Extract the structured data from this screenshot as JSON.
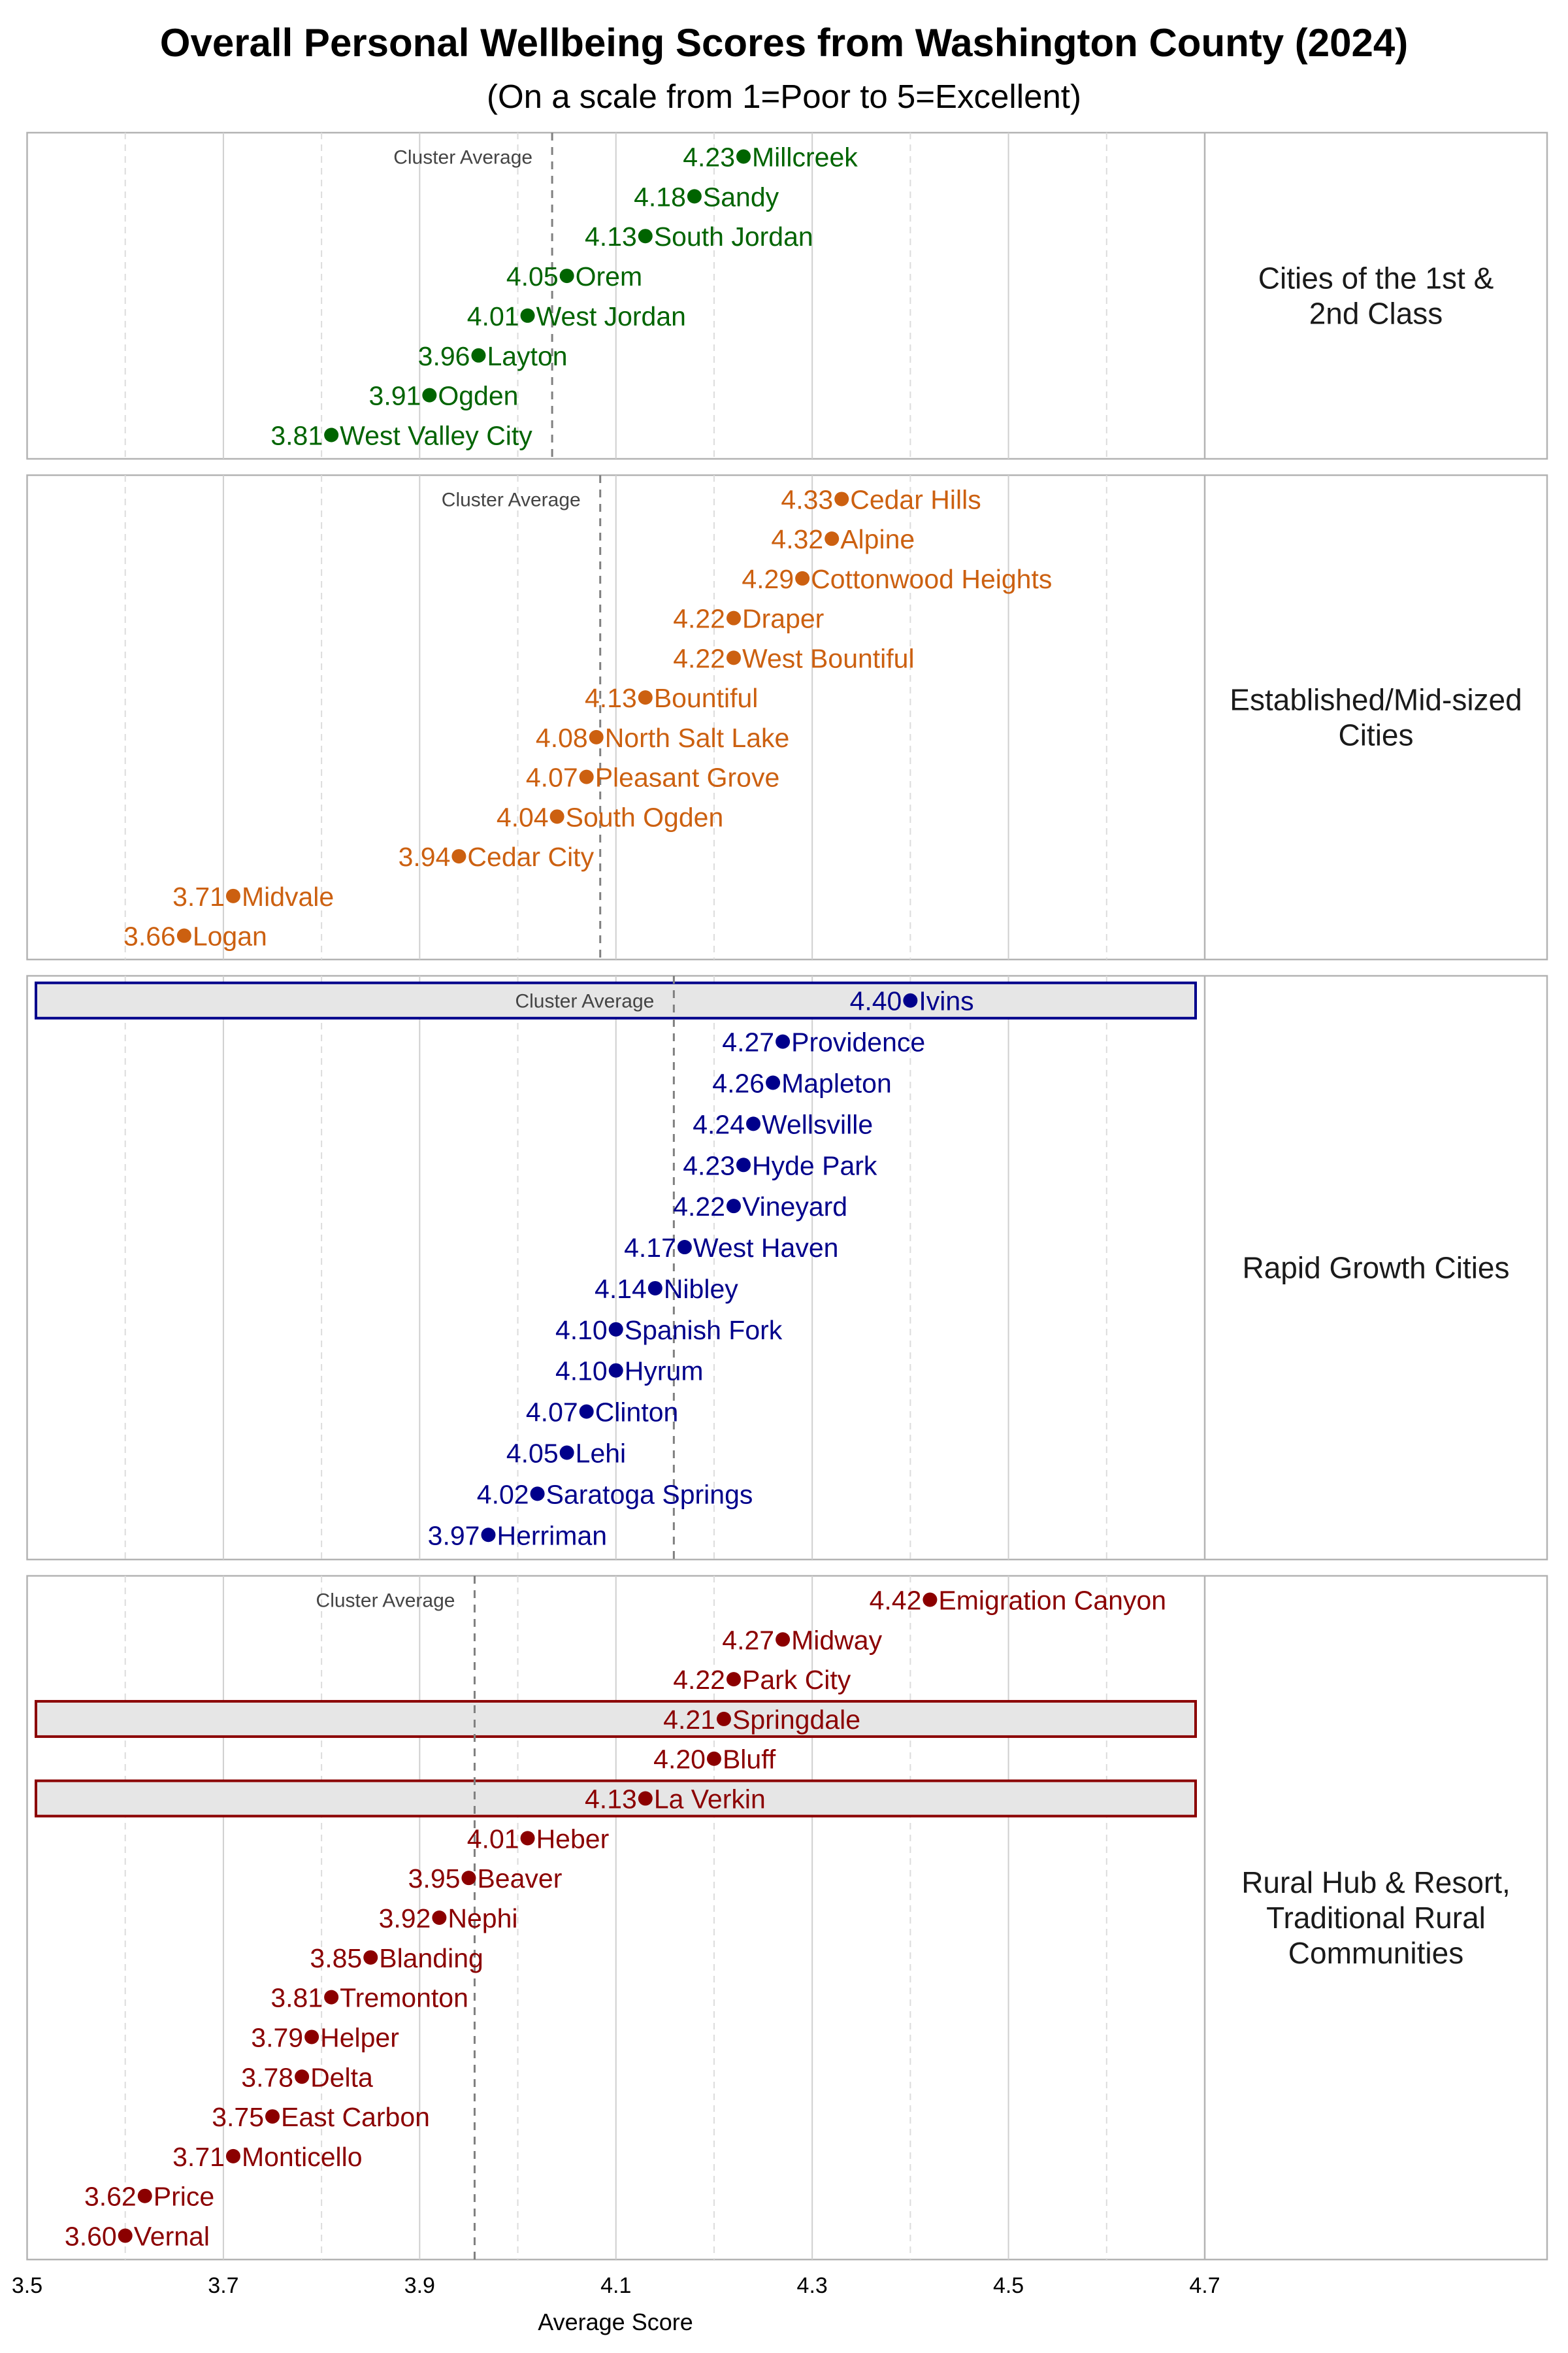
{
  "chart_data": {
    "type": "scatter",
    "title": "Overall Personal Wellbeing Scores from Washington County (2024)",
    "subtitle": "(On a scale from 1=Poor to 5=Excellent)",
    "xlabel": "Average Score",
    "xlim": [
      3.5,
      4.7
    ],
    "xticks": [
      "3.5",
      "3.7",
      "3.9",
      "4.1",
      "4.3",
      "4.5",
      "4.7"
    ],
    "grid": true,
    "average_label": "Cluster Average",
    "panels": [
      {
        "name": "Cities of the 1st & 2nd Class",
        "name_lines": [
          "Cities of the 1st &",
          "2nd Class"
        ],
        "color": "#006400",
        "cluster_average": 4.035,
        "points": [
          {
            "label": "Millcreek",
            "value": 4.23
          },
          {
            "label": "Sandy",
            "value": 4.18
          },
          {
            "label": "South Jordan",
            "value": 4.13
          },
          {
            "label": "Orem",
            "value": 4.05
          },
          {
            "label": "West Jordan",
            "value": 4.01
          },
          {
            "label": "Layton",
            "value": 3.96
          },
          {
            "label": "Ogden",
            "value": 3.91
          },
          {
            "label": "West Valley City",
            "value": 3.81
          }
        ]
      },
      {
        "name": "Established/Mid-sized Cities",
        "name_lines": [
          "Established/Mid-sized",
          "Cities"
        ],
        "color": "#CC6010",
        "cluster_average": 4.084,
        "points": [
          {
            "label": "Cedar Hills",
            "value": 4.33
          },
          {
            "label": "Alpine",
            "value": 4.32
          },
          {
            "label": "Cottonwood Heights",
            "value": 4.29
          },
          {
            "label": "Draper",
            "value": 4.22
          },
          {
            "label": "West Bountiful",
            "value": 4.22
          },
          {
            "label": "Bountiful",
            "value": 4.13
          },
          {
            "label": "North Salt Lake",
            "value": 4.08
          },
          {
            "label": "Pleasant Grove",
            "value": 4.07
          },
          {
            "label": "South Ogden",
            "value": 4.04
          },
          {
            "label": "Cedar City",
            "value": 3.94
          },
          {
            "label": "Midvale",
            "value": 3.71
          },
          {
            "label": "Logan",
            "value": 3.66
          }
        ]
      },
      {
        "name": "Rapid Growth Cities",
        "name_lines": [
          "Rapid Growth Cities"
        ],
        "color": "#00008B",
        "cluster_average": 4.159,
        "points": [
          {
            "label": "Ivins",
            "value": 4.4,
            "highlight": true
          },
          {
            "label": "Providence",
            "value": 4.27
          },
          {
            "label": "Mapleton",
            "value": 4.26
          },
          {
            "label": "Wellsville",
            "value": 4.24
          },
          {
            "label": "Hyde Park",
            "value": 4.23
          },
          {
            "label": "Vineyard",
            "value": 4.22
          },
          {
            "label": "West Haven",
            "value": 4.17
          },
          {
            "label": "Nibley",
            "value": 4.14
          },
          {
            "label": "Spanish Fork",
            "value": 4.1
          },
          {
            "label": "Hyrum",
            "value": 4.1
          },
          {
            "label": "Clinton",
            "value": 4.07
          },
          {
            "label": "Lehi",
            "value": 4.05
          },
          {
            "label": "Saratoga Springs",
            "value": 4.02
          },
          {
            "label": "Herriman",
            "value": 3.97
          }
        ]
      },
      {
        "name": "Rural Hub & Resort, Traditional Rural Communities",
        "name_lines": [
          "Rural Hub & Resort,",
          "Traditional Rural",
          "Communities"
        ],
        "color": "#8B0000",
        "cluster_average": 3.956,
        "points": [
          {
            "label": "Emigration Canyon",
            "value": 4.42
          },
          {
            "label": "Midway",
            "value": 4.27
          },
          {
            "label": "Park City",
            "value": 4.22
          },
          {
            "label": "Springdale",
            "value": 4.21,
            "highlight": true
          },
          {
            "label": "Bluff",
            "value": 4.2
          },
          {
            "label": "La Verkin",
            "value": 4.13,
            "highlight": true
          },
          {
            "label": "Heber",
            "value": 4.01
          },
          {
            "label": "Beaver",
            "value": 3.95
          },
          {
            "label": "Nephi",
            "value": 3.92
          },
          {
            "label": "Blanding",
            "value": 3.85
          },
          {
            "label": "Tremonton",
            "value": 3.81
          },
          {
            "label": "Helper",
            "value": 3.79
          },
          {
            "label": "Delta",
            "value": 3.78
          },
          {
            "label": "East Carbon",
            "value": 3.75
          },
          {
            "label": "Monticello",
            "value": 3.71
          },
          {
            "label": "Price",
            "value": 3.62
          },
          {
            "label": "Vernal",
            "value": 3.6
          }
        ]
      }
    ]
  }
}
